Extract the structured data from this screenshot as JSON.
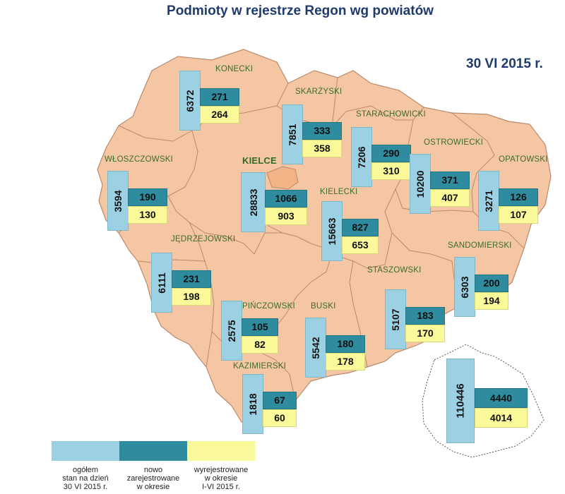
{
  "title": "Podmioty w rejestrze Regon wg powiatów",
  "date": "30 VI 2015 r.",
  "colors": {
    "map_fill": "#f5c6a4",
    "city_fill": "#f2b487",
    "border": "#b98a6a",
    "total": "#9cd1e3",
    "new": "#2f8b9e",
    "deregistered": "#fbfa9a"
  },
  "counties": [
    {
      "name": "KONECKI",
      "total": "6372",
      "new": "271",
      "deregistered": "264"
    },
    {
      "name": "SKARŻYSKI",
      "total": "7851",
      "new": "333",
      "deregistered": "358"
    },
    {
      "name": "STARACHOWICKI",
      "total": "7206",
      "new": "290",
      "deregistered": "310"
    },
    {
      "name": "OSTROWIECKI",
      "total": "10200",
      "new": "371",
      "deregistered": "407"
    },
    {
      "name": "OPATOWSKI",
      "total": "3271",
      "new": "126",
      "deregistered": "107"
    },
    {
      "name": "WŁOSZCZOWSKI",
      "total": "3594",
      "new": "190",
      "deregistered": "130"
    },
    {
      "name": "KIELCE",
      "total": "28833",
      "new": "1066",
      "deregistered": "903"
    },
    {
      "name": "KIELECKI",
      "total": "15663",
      "new": "827",
      "deregistered": "653"
    },
    {
      "name": "JĘDRZEJOWSKI",
      "total": "6111",
      "new": "231",
      "deregistered": "198"
    },
    {
      "name": "SANDOMIERSKI",
      "total": "6303",
      "new": "200",
      "deregistered": "194"
    },
    {
      "name": "STASZOWSKI",
      "total": "5107",
      "new": "183",
      "deregistered": "170"
    },
    {
      "name": "PIŃCZOWSKI",
      "total": "2575",
      "new": "105",
      "deregistered": "82"
    },
    {
      "name": "BUSKI",
      "total": "5542",
      "new": "180",
      "deregistered": "178"
    },
    {
      "name": "KAZIMIERSKI",
      "total": "1818",
      "new": "67",
      "deregistered": "60"
    }
  ],
  "voivodeship_total": {
    "total": "110446",
    "new": "4440",
    "deregistered": "4014"
  },
  "legend": [
    {
      "line1": "ogółem",
      "line2": "stan na dzień",
      "line3": "30 VI 2015 r."
    },
    {
      "line1": "nowo",
      "line2": "zarejestrowane",
      "line3": "w okresie"
    },
    {
      "line1": "wyrejestrowane",
      "line2": "w okresie",
      "line3": "I-VI 2015 r."
    }
  ]
}
